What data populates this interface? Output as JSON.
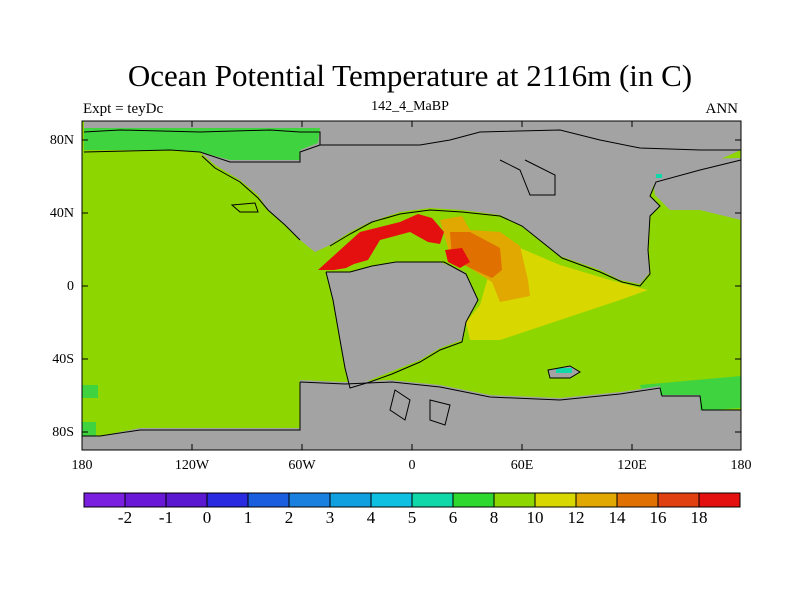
{
  "title": "Ocean Potential Temperature at 2116m (in C)",
  "experiment_label": "Expt = teyDc",
  "case_label": "142_4_MaBP",
  "season_label": "ANN",
  "colors": {
    "land": "#a3a3a3",
    "ocean_cold": "#3fd43f",
    "ocean_main": "#8ed600",
    "ocean_warm": "#d8d800",
    "ocean_warmer": "#e0a800",
    "ocean_hot": "#e07000",
    "ocean_hottest": "#e41010"
  },
  "map": {
    "lat_labels": [
      "80N",
      "40N",
      "0",
      "40S",
      "80S"
    ],
    "lon_labels": [
      "180",
      "120W",
      "60W",
      "0",
      "60E",
      "120E",
      "180"
    ]
  },
  "colorbar": {
    "labels": [
      "-2",
      "-1",
      "0",
      "1",
      "2",
      "3",
      "4",
      "5",
      "6",
      "8",
      "10",
      "12",
      "14",
      "16",
      "18"
    ],
    "colors": [
      "#7a1ee0",
      "#6a18d8",
      "#5a18d0",
      "#2a2ae0",
      "#1a5ee0",
      "#1a80e0",
      "#10a0e0",
      "#10c0e0",
      "#10d8a8",
      "#2ed82e",
      "#8ed600",
      "#d8d800",
      "#e0a800",
      "#e07000",
      "#e04010",
      "#e41010"
    ]
  }
}
